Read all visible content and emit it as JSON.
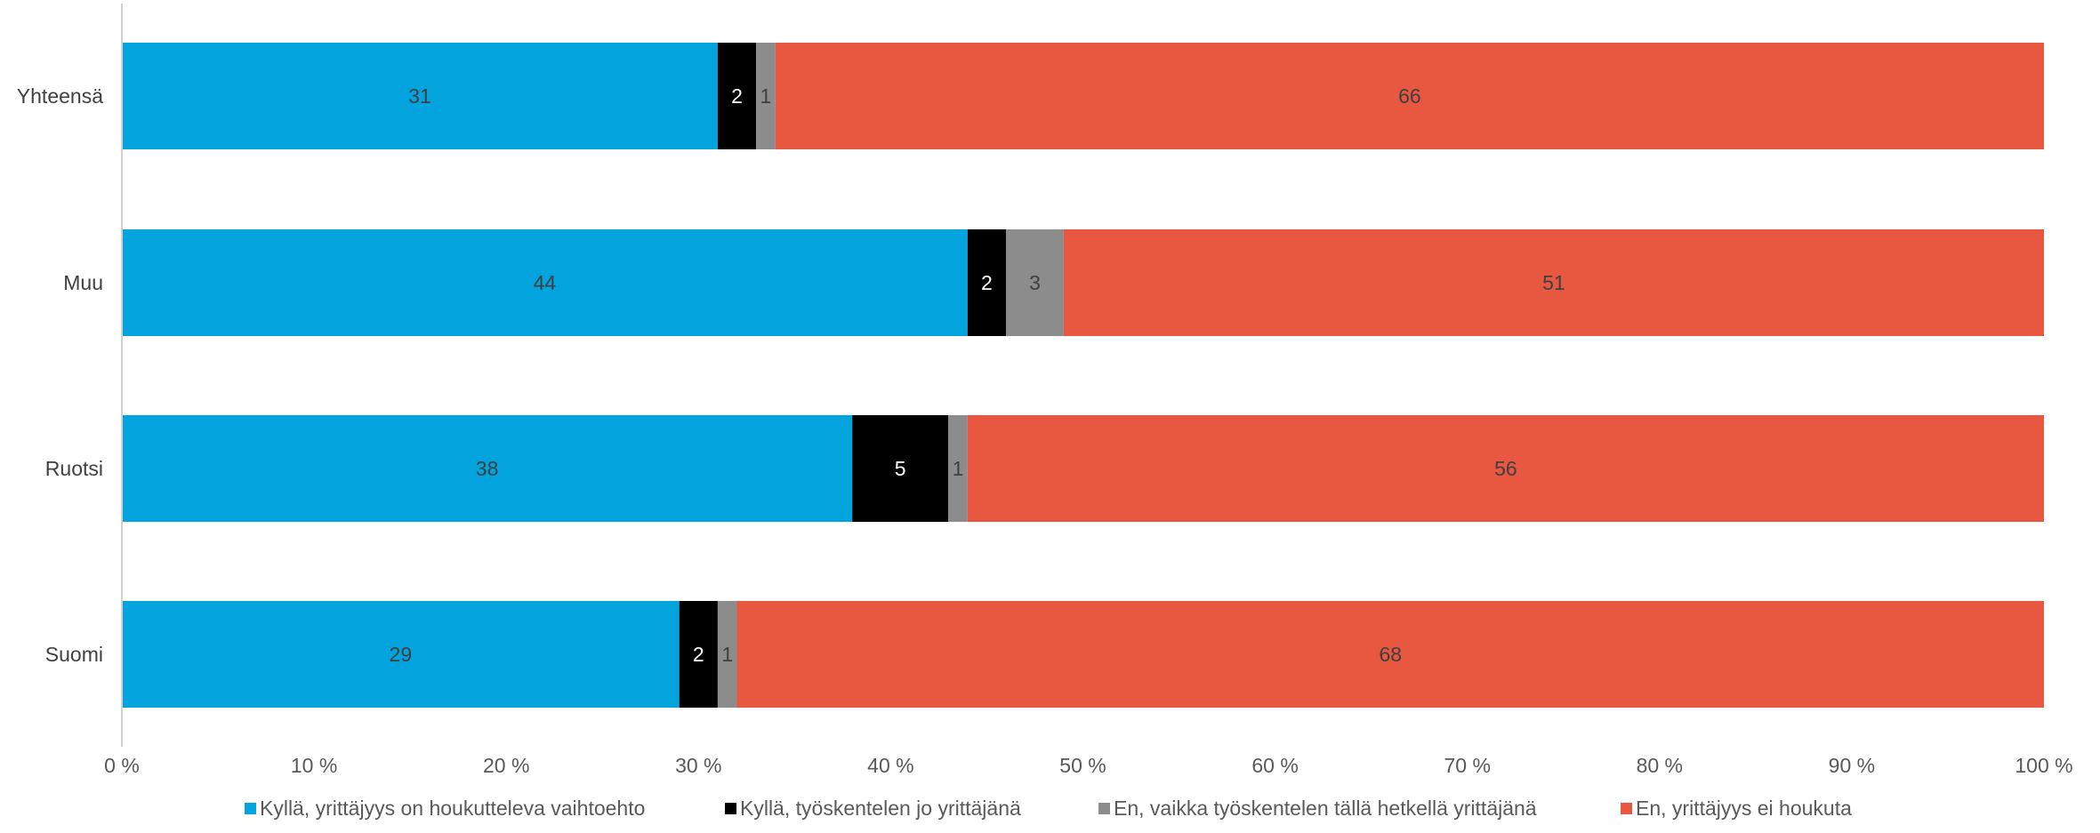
{
  "chart_data": {
    "type": "bar",
    "orientation": "horizontal",
    "stacked": "percent",
    "categories": [
      "Yhteensä",
      "Muu",
      "Ruotsi",
      "Suomi"
    ],
    "series": [
      {
        "name": "Kyllä, yrittäjyys on houkutteleva vaihtoehto",
        "color": "#03a3dd",
        "label_color": "#404040",
        "values": [
          31,
          44,
          38,
          29
        ]
      },
      {
        "name": "Kyllä, työskentelen jo yrittäjänä",
        "color": "#000000",
        "label_color": "#ffffff",
        "values": [
          2,
          2,
          5,
          2
        ]
      },
      {
        "name": "En, vaikka työskentelen tällä hetkellä yrittäjänä",
        "color": "#8c8c8c",
        "label_color": "#404040",
        "values": [
          1,
          3,
          1,
          1
        ]
      },
      {
        "name": "En, yrittäjyys ei houkuta",
        "color": "#e8573f",
        "label_color": "#404040",
        "values": [
          66,
          51,
          56,
          68
        ]
      }
    ],
    "xlim": [
      0,
      100
    ],
    "x_ticks": [
      "0 %",
      "10 %",
      "20 %",
      "30 %",
      "40 %",
      "50 %",
      "60 %",
      "70 %",
      "80 %",
      "90 %",
      "100 %"
    ],
    "grid": false,
    "legend": "bottom",
    "title": "",
    "xlabel": "",
    "ylabel": ""
  }
}
